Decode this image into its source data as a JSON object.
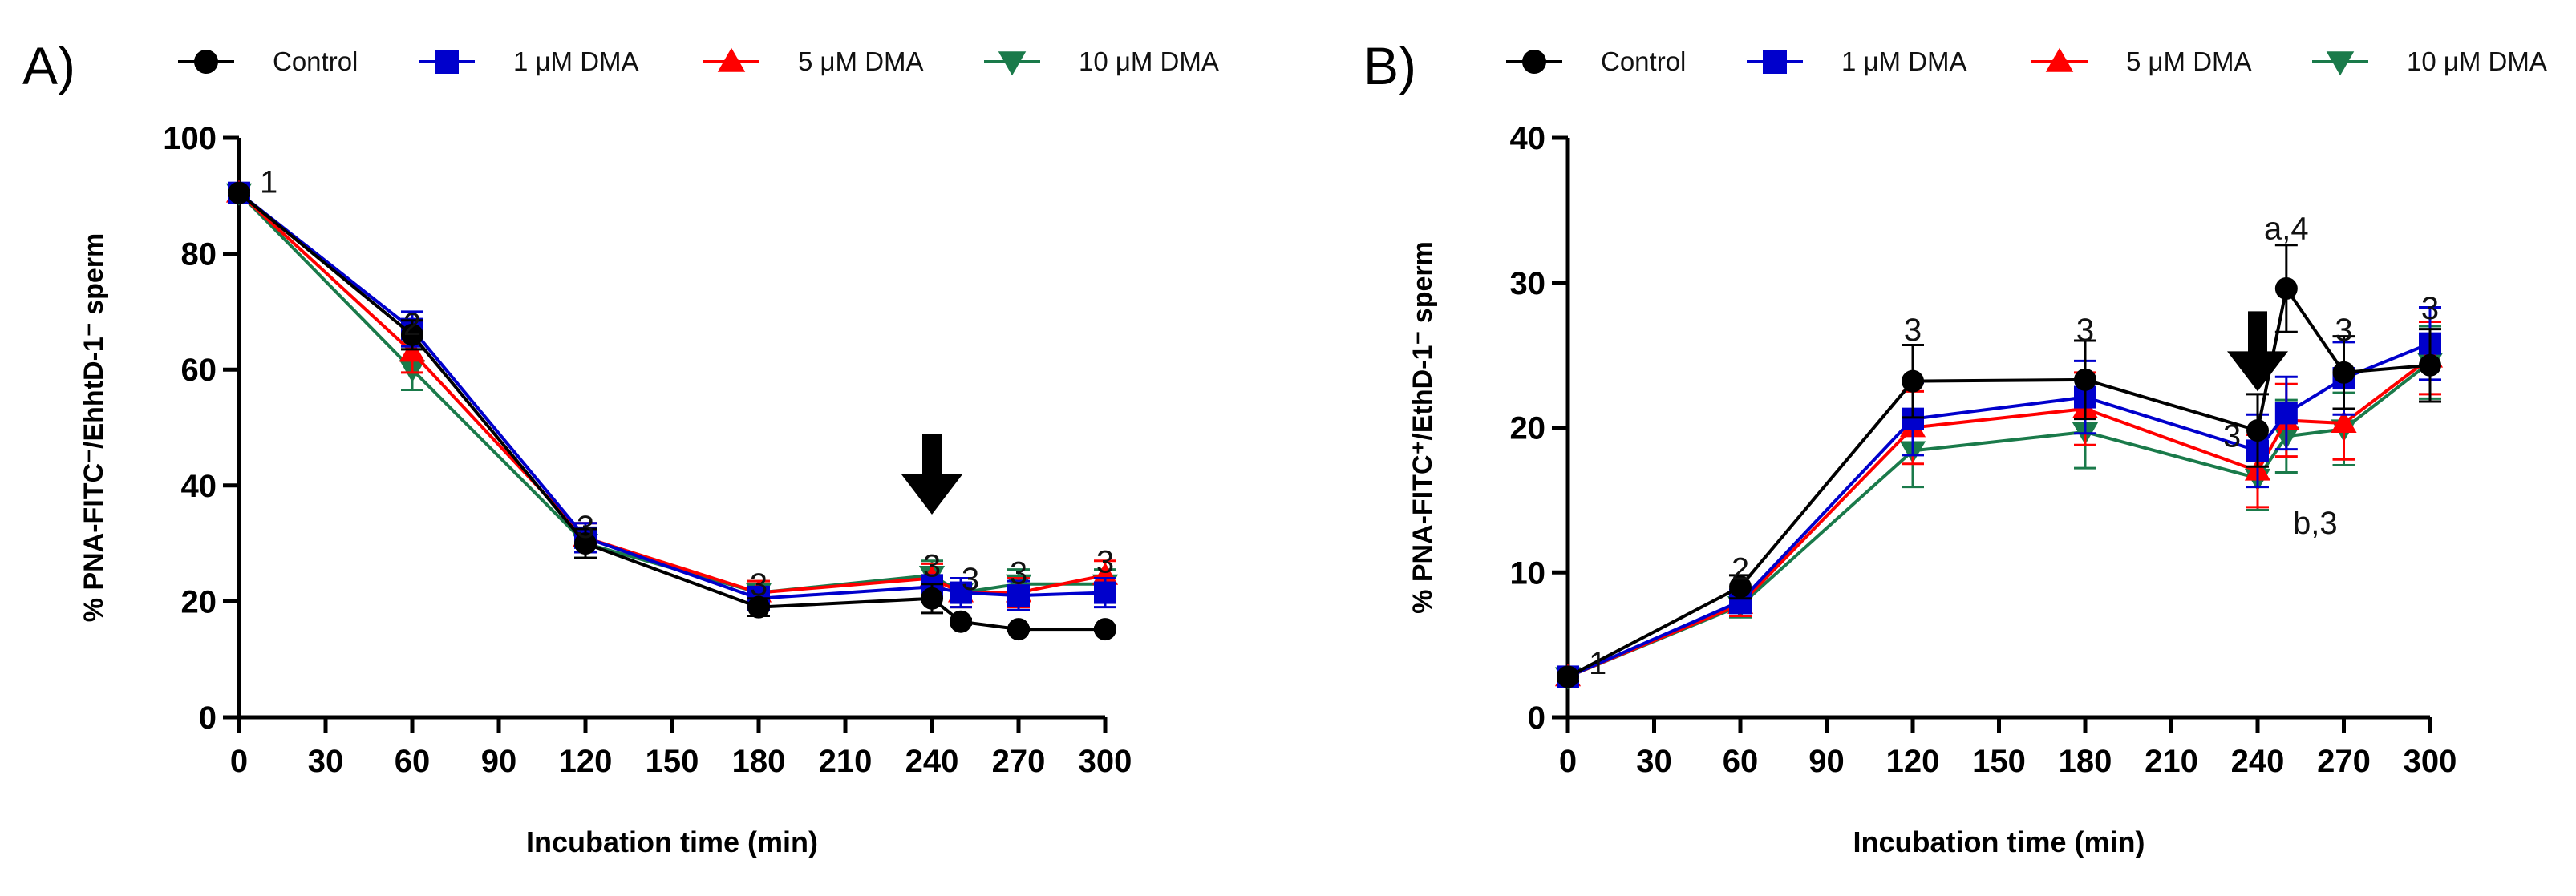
{
  "legend": [
    {
      "name": "Control",
      "color": "#000000",
      "marker": "circle"
    },
    {
      "name": "1 μM DMA",
      "color": "#0000cc",
      "marker": "square"
    },
    {
      "name": "5 μM DMA",
      "color": "#ff0000",
      "marker": "triangle-up"
    },
    {
      "name": "10 μM DMA",
      "color": "#1a7a4a",
      "marker": "triangle-down"
    }
  ],
  "chart_data": [
    {
      "type": "line",
      "panel_label": "A)",
      "ylabel": "% PNA-FITC⁻/EhhtD-1⁻ sperm",
      "xlabel": "Incubation time (min)",
      "xlim": [
        0,
        300
      ],
      "ylim": [
        0,
        100
      ],
      "xticks": [
        0,
        30,
        60,
        90,
        120,
        150,
        180,
        210,
        240,
        270,
        300
      ],
      "yticks": [
        0,
        20,
        40,
        60,
        80,
        100
      ],
      "arrow_at_x": 240,
      "series": [
        {
          "name": "Control",
          "color": "#000000",
          "marker": "circle",
          "points": [
            [
              0,
              90.5,
              0.5
            ],
            [
              60,
              66,
              2.5
            ],
            [
              120,
              30,
              2.5
            ],
            [
              180,
              19,
              1.5
            ],
            [
              240,
              20.5,
              2.5
            ],
            [
              250,
              16.5,
              0.5
            ],
            [
              270,
              15.2,
              0.3
            ],
            [
              300,
              15.2,
              0.3
            ]
          ]
        },
        {
          "name": "1 μM DMA",
          "color": "#0000cc",
          "marker": "square",
          "points": [
            [
              0,
              90.5,
              0.5
            ],
            [
              60,
              67,
              3
            ],
            [
              120,
              31,
              2.5
            ],
            [
              180,
              20.5,
              2
            ],
            [
              240,
              22.5,
              2
            ],
            [
              250,
              21.5,
              2.5
            ],
            [
              270,
              21,
              2.5
            ],
            [
              300,
              21.5,
              2.5
            ]
          ]
        },
        {
          "name": "5 μM DMA",
          "color": "#ff0000",
          "marker": "triangle-up",
          "points": [
            [
              0,
              90.5,
              0.5
            ],
            [
              60,
              63,
              3.5
            ],
            [
              120,
              31,
              2.5
            ],
            [
              180,
              21.5,
              2
            ],
            [
              240,
              24,
              2.5
            ],
            [
              250,
              21.5,
              2.5
            ],
            [
              270,
              21.5,
              2.5
            ],
            [
              300,
              24.5,
              2.5
            ]
          ]
        },
        {
          "name": "10 μM DMA",
          "color": "#1a7a4a",
          "marker": "triangle-down",
          "points": [
            [
              0,
              90.5,
              0.5
            ],
            [
              60,
              60,
              3.5
            ],
            [
              120,
              30,
              2.5
            ],
            [
              180,
              21.5,
              2
            ],
            [
              240,
              24.5,
              2.5
            ],
            [
              250,
              21.5,
              2.5
            ],
            [
              270,
              23,
              2.5
            ],
            [
              300,
              23,
              2.5
            ]
          ]
        }
      ],
      "annotations": [
        {
          "text": "1",
          "x": 0,
          "y": 90.5
        },
        {
          "text": "2",
          "x": 60,
          "y": 66
        },
        {
          "text": "3",
          "x": 120,
          "y": 31
        },
        {
          "text": "3",
          "x": 180,
          "y": 21
        },
        {
          "text": "3",
          "x": 240,
          "y": 24
        },
        {
          "text": "3",
          "x": 250,
          "y": 22
        },
        {
          "text": "3",
          "x": 270,
          "y": 23
        },
        {
          "text": "3",
          "x": 300,
          "y": 25
        }
      ]
    },
    {
      "type": "line",
      "panel_label": "B)",
      "ylabel": "% PNA-FITC⁺/EthD-1⁻ sperm",
      "xlabel": "Incubation time (min)",
      "xlim": [
        0,
        300
      ],
      "ylim": [
        0,
        40
      ],
      "xticks": [
        0,
        30,
        60,
        90,
        120,
        150,
        180,
        210,
        240,
        270,
        300
      ],
      "yticks": [
        0,
        10,
        20,
        30,
        40
      ],
      "arrow_at_x": 240,
      "series": [
        {
          "name": "Control",
          "color": "#000000",
          "marker": "circle",
          "points": [
            [
              0,
              2.8,
              0.3
            ],
            [
              60,
              9,
              0.8
            ],
            [
              120,
              23.2,
              2.5
            ],
            [
              180,
              23.3,
              2.7
            ],
            [
              240,
              19.8,
              2.5
            ],
            [
              250,
              29.6,
              3
            ],
            [
              270,
              23.8,
              2.5
            ],
            [
              300,
              24.3,
              2.5
            ]
          ]
        },
        {
          "name": "1 μM DMA",
          "color": "#0000cc",
          "marker": "square",
          "points": [
            [
              0,
              2.8,
              0.3
            ],
            [
              60,
              8,
              0.8
            ],
            [
              120,
              20.6,
              2.5
            ],
            [
              180,
              22.1,
              2.5
            ],
            [
              240,
              18.4,
              2.5
            ],
            [
              250,
              21,
              2.5
            ],
            [
              270,
              23.4,
              2.5
            ],
            [
              300,
              25.8,
              2.5
            ]
          ]
        },
        {
          "name": "5 μM DMA",
          "color": "#ff0000",
          "marker": "triangle-up",
          "points": [
            [
              0,
              2.8,
              0.3
            ],
            [
              60,
              7.8,
              0.8
            ],
            [
              120,
              20,
              2.5
            ],
            [
              180,
              21.3,
              2.5
            ],
            [
              240,
              17,
              2.5
            ],
            [
              250,
              20.5,
              2.5
            ],
            [
              270,
              20.3,
              2.5
            ],
            [
              300,
              24.8,
              2.5
            ]
          ]
        },
        {
          "name": "10 μM DMA",
          "color": "#1a7a4a",
          "marker": "triangle-down",
          "points": [
            [
              0,
              2.8,
              0.3
            ],
            [
              60,
              7.7,
              0.8
            ],
            [
              120,
              18.4,
              2.5
            ],
            [
              180,
              19.7,
              2.5
            ],
            [
              240,
              16.5,
              2.2
            ],
            [
              250,
              19.4,
              2.5
            ],
            [
              270,
              19.9,
              2.5
            ],
            [
              300,
              24.5,
              2.5
            ]
          ]
        }
      ],
      "annotations": [
        {
          "text": "1",
          "x": 0,
          "y": 3
        },
        {
          "text": "2",
          "x": 60,
          "y": 9.5
        },
        {
          "text": "3",
          "x": 120,
          "y": 26
        },
        {
          "text": "3",
          "x": 180,
          "y": 26
        },
        {
          "text": "3",
          "x": 240,
          "y": 20
        },
        {
          "text": "a,4",
          "x": 250,
          "y": 33
        },
        {
          "text": "b,3",
          "x": 250,
          "y": 15
        },
        {
          "text": "3",
          "x": 270,
          "y": 26
        },
        {
          "text": "3",
          "x": 300,
          "y": 27.5
        }
      ]
    }
  ]
}
